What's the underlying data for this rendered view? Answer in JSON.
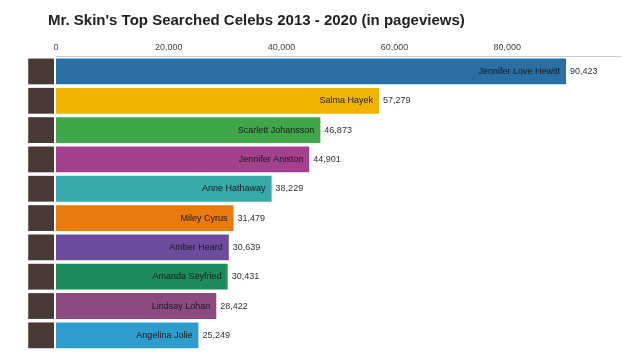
{
  "chart_data": {
    "type": "bar",
    "title": "Mr. Skin's Top Searched Celebs 2013 - 2020 (in pageviews)",
    "orientation": "horizontal",
    "categories": [
      "Jennifer Love Hewitt",
      "Salma Hayek",
      "Scarlett Johansson",
      "Jennifer Aniston",
      "Anne Hathaway",
      "Miley Cyrus",
      "Amber Heard",
      "Amanda Seyfried",
      "Lindsay Lohan",
      "Angelina Jolie"
    ],
    "values": [
      90423,
      57279,
      46873,
      44901,
      38229,
      31479,
      30639,
      30431,
      28422,
      25249
    ],
    "value_labels": [
      "90,423",
      "57,279",
      "46,873",
      "44,901",
      "38,229",
      "31,479",
      "30,639",
      "30,431",
      "28,422",
      "25,249"
    ],
    "colors": [
      "#2a6ea6",
      "#f0b400",
      "#3fa64a",
      "#a3418f",
      "#36aaa8",
      "#e87a10",
      "#6b4c9e",
      "#1f8a5c",
      "#8b4a80",
      "#2e9ccc"
    ],
    "xlim": [
      0,
      100000
    ],
    "xticks": [
      0,
      {
        "value": 20000,
        "label": "20,000"
      },
      {
        "value": 40000,
        "label": "40,000"
      },
      {
        "value": 60000,
        "label": "60,000"
      },
      {
        "value": 80000,
        "label": "80,000"
      }
    ],
    "grid": false,
    "data_labels": true,
    "tick_labels": "x"
  }
}
